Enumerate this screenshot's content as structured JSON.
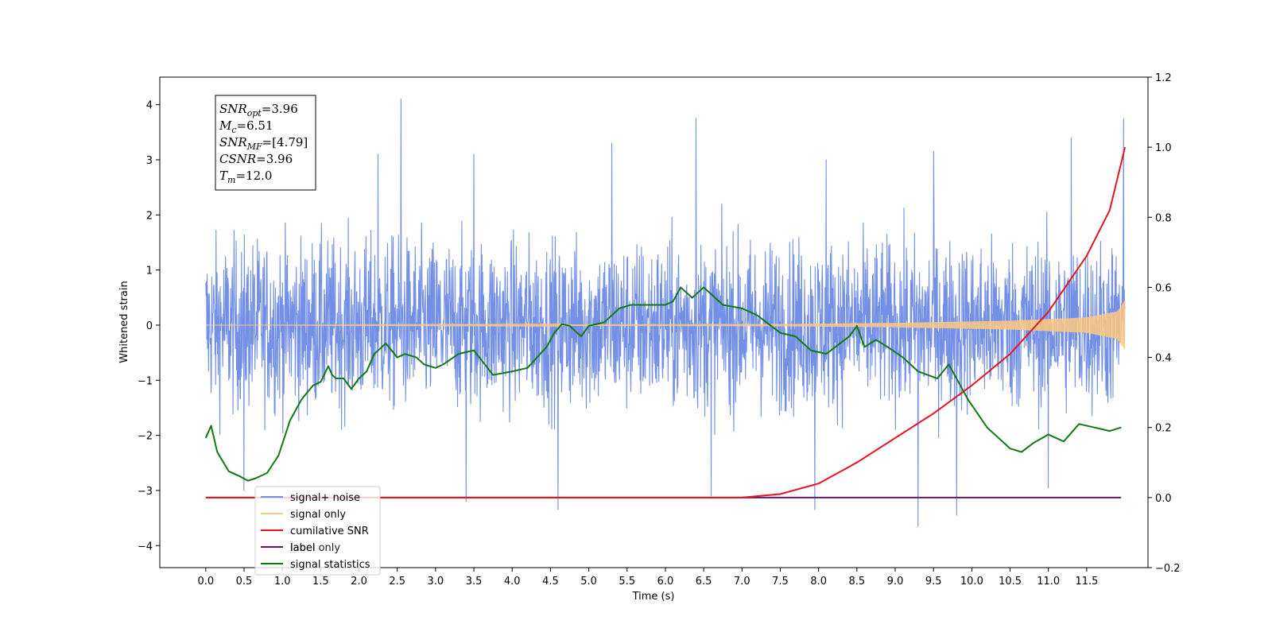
{
  "chart_data": {
    "type": "line",
    "xlabel": "Time (s)",
    "ylabel": "Whitened strain",
    "xlim": [
      -0.6,
      12.3
    ],
    "ylim": [
      -4.4,
      4.5
    ],
    "y2lim": [
      -0.2,
      1.2
    ],
    "x_ticks": [
      0.0,
      0.5,
      1.0,
      1.5,
      2.0,
      2.5,
      3.0,
      3.5,
      4.0,
      4.5,
      5.0,
      5.5,
      6.0,
      6.5,
      7.0,
      7.5,
      8.0,
      8.5,
      9.0,
      9.5,
      10.0,
      10.5,
      11.0,
      11.5
    ],
    "x_tick_labels": [
      "0.0",
      "0.5",
      "1.0",
      "1.5",
      "2.0",
      "2.5",
      "3.0",
      "3.5",
      "4.0",
      "4.5",
      "5.0",
      "5.5",
      "6.0",
      "6.5",
      "7.0",
      "7.5",
      "8.0",
      "8.5",
      "9.0",
      "9.5",
      "10.0",
      "10.5",
      "11.0",
      "11.5"
    ],
    "y_ticks": [
      -4,
      -3,
      -2,
      -1,
      0,
      1,
      2,
      3,
      4
    ],
    "y_tick_labels": [
      "−4",
      "−3",
      "−2",
      "−1",
      "0",
      "1",
      "2",
      "3",
      "4"
    ],
    "y2_ticks": [
      -0.2,
      0.0,
      0.2,
      0.4,
      0.6,
      0.8,
      1.0,
      1.2
    ],
    "y2_tick_labels": [
      "−0.2",
      "0.0",
      "0.2",
      "0.4",
      "0.6",
      "0.8",
      "1.0",
      "1.2"
    ],
    "legend_position": "lower-left",
    "legend": [
      {
        "label": "signal+ noise",
        "color": "#7390e6"
      },
      {
        "label": "signal only",
        "color": "#ffc880"
      },
      {
        "label": "cumilative SNR",
        "color": "#e8141c"
      },
      {
        "label": "label",
        "color": "#6b1270"
      },
      {
        "label": "signal statistics",
        "color": "#107a10"
      }
    ],
    "legend_overlap_text": "label only",
    "annotation": [
      {
        "name": "SNR",
        "sub": "opt",
        "value": "=3.96"
      },
      {
        "name": "M",
        "sub": "c",
        "value": "=6.51"
      },
      {
        "name": "SNR",
        "sub": "MF",
        "value": "=[4.79]"
      },
      {
        "name": "CSNR",
        "sub": "",
        "value": "=3.96"
      },
      {
        "name": "T",
        "sub": "m",
        "value": "=12.0"
      }
    ],
    "series": [
      {
        "name": "signal+ noise",
        "axis": "left",
        "color": "#7390e6",
        "x_range": [
          0.0,
          12.0
        ],
        "band_center": 0.0,
        "band_halfwidth": 1.95,
        "spikes": [
          {
            "x": 2.55,
            "y": 4.1
          },
          {
            "x": 6.4,
            "y": 3.75
          },
          {
            "x": 11.98,
            "y": 3.75
          },
          {
            "x": 11.3,
            "y": 3.4
          },
          {
            "x": 9.5,
            "y": 3.15
          },
          {
            "x": 2.25,
            "y": 3.1
          },
          {
            "x": 5.3,
            "y": 3.3
          },
          {
            "x": 3.5,
            "y": 3.1
          },
          {
            "x": 8.1,
            "y": 3.0
          },
          {
            "x": 9.3,
            "y": -3.65
          },
          {
            "x": 9.8,
            "y": -3.45
          },
          {
            "x": 4.6,
            "y": -3.35
          },
          {
            "x": 3.4,
            "y": -3.2
          },
          {
            "x": 0.5,
            "y": -3.0
          },
          {
            "x": 7.95,
            "y": -3.35
          },
          {
            "x": 11.0,
            "y": -2.95
          },
          {
            "x": 6.6,
            "y": -3.1
          }
        ]
      },
      {
        "name": "signal only",
        "axis": "left",
        "color": "#ffc880",
        "envelope": [
          [
            0.0,
            0.0
          ],
          [
            7.5,
            0.02
          ],
          [
            9.0,
            0.04
          ],
          [
            10.5,
            0.08
          ],
          [
            11.5,
            0.14
          ],
          [
            11.9,
            0.25
          ],
          [
            12.0,
            0.45
          ]
        ]
      },
      {
        "name": "cumilative SNR",
        "axis": "right",
        "color": "#e8141c",
        "x": [
          0.0,
          6.0,
          7.0,
          7.5,
          8.0,
          8.5,
          9.0,
          9.5,
          10.0,
          10.5,
          11.0,
          11.5,
          11.8,
          12.0
        ],
        "y": [
          0.0,
          0.0,
          0.0,
          0.01,
          0.04,
          0.1,
          0.17,
          0.24,
          0.32,
          0.41,
          0.53,
          0.69,
          0.82,
          1.0
        ]
      },
      {
        "name": "label",
        "axis": "right",
        "color": "#6b1270",
        "x": [
          0.0,
          11.95
        ],
        "y": [
          0.0,
          0.0
        ]
      },
      {
        "name": "signal statistics",
        "axis": "right",
        "color": "#107a10",
        "x": [
          0.0,
          0.07,
          0.15,
          0.3,
          0.45,
          0.55,
          0.65,
          0.8,
          0.95,
          1.1,
          1.25,
          1.4,
          1.5,
          1.6,
          1.65,
          1.7,
          1.8,
          1.9,
          2.0,
          2.1,
          2.2,
          2.35,
          2.5,
          2.6,
          2.75,
          2.85,
          3.0,
          3.1,
          3.3,
          3.5,
          3.75,
          4.0,
          4.2,
          4.45,
          4.55,
          4.65,
          4.75,
          4.9,
          5.0,
          5.2,
          5.4,
          5.55,
          5.75,
          6.0,
          6.1,
          6.2,
          6.35,
          6.5,
          6.6,
          6.75,
          7.0,
          7.2,
          7.5,
          7.7,
          7.9,
          8.1,
          8.4,
          8.5,
          8.6,
          8.75,
          8.9,
          9.1,
          9.3,
          9.55,
          9.7,
          9.8,
          9.95,
          10.2,
          10.5,
          10.65,
          10.8,
          11.0,
          11.2,
          11.4,
          11.6,
          11.8,
          11.95
        ],
        "y": [
          0.17,
          0.205,
          0.13,
          0.075,
          0.06,
          0.048,
          0.055,
          0.07,
          0.12,
          0.22,
          0.28,
          0.32,
          0.33,
          0.375,
          0.35,
          0.34,
          0.34,
          0.31,
          0.34,
          0.36,
          0.41,
          0.44,
          0.4,
          0.41,
          0.4,
          0.38,
          0.37,
          0.38,
          0.41,
          0.42,
          0.35,
          0.36,
          0.37,
          0.43,
          0.47,
          0.495,
          0.49,
          0.46,
          0.49,
          0.5,
          0.54,
          0.55,
          0.55,
          0.55,
          0.56,
          0.6,
          0.57,
          0.6,
          0.58,
          0.55,
          0.54,
          0.52,
          0.47,
          0.46,
          0.42,
          0.41,
          0.46,
          0.49,
          0.43,
          0.45,
          0.43,
          0.4,
          0.36,
          0.34,
          0.38,
          0.34,
          0.28,
          0.2,
          0.14,
          0.13,
          0.155,
          0.18,
          0.16,
          0.21,
          0.2,
          0.19,
          0.2
        ]
      }
    ]
  }
}
